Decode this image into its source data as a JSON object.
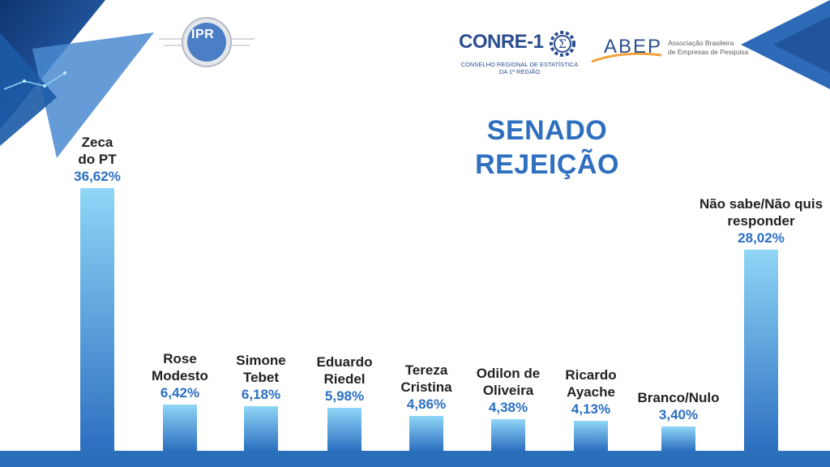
{
  "brand": {
    "ipr": "IPR",
    "conre_name": "CONRE-1",
    "conre_subtitle": "CONSELHO REGIONAL DE ESTATÍSTICA DA 1ª REGIÃO",
    "abep_name": "ABEP",
    "abep_description_line1": "Associação Brasileira",
    "abep_description_line2": "de Empresas de Pesquisa"
  },
  "colors": {
    "title": "#2f6fbf",
    "value_text": "#2a6fc3",
    "bar_top": "#8fd6f7",
    "bar_bottom": "#2c6fc0",
    "corner_dark": "#1b4c92",
    "corner_light": "#4d8fd0"
  },
  "chart_data": {
    "type": "bar",
    "title_line1": "SENADO",
    "title_line2": "REJEIÇÃO",
    "categories": [
      "Zeca\ndo PT",
      "Rose\nModesto",
      "Simone\nTebet",
      "Eduardo\nRiedel",
      "Tereza\nCristina",
      "Odilon de\nOliveira",
      "Ricardo\nAyache",
      "Branco/Nulo",
      "Não sabe/Não quis\nresponder"
    ],
    "values": [
      36.62,
      6.42,
      6.18,
      5.98,
      4.86,
      4.38,
      4.13,
      3.4,
      28.02
    ],
    "value_labels": [
      "36,62%",
      "6,42%",
      "6,18%",
      "5,98%",
      "4,86%",
      "4,38%",
      "4,13%",
      "3,40%",
      "28,02%"
    ],
    "ylim": [
      0,
      36.62
    ],
    "grid": false,
    "legend": "none"
  }
}
